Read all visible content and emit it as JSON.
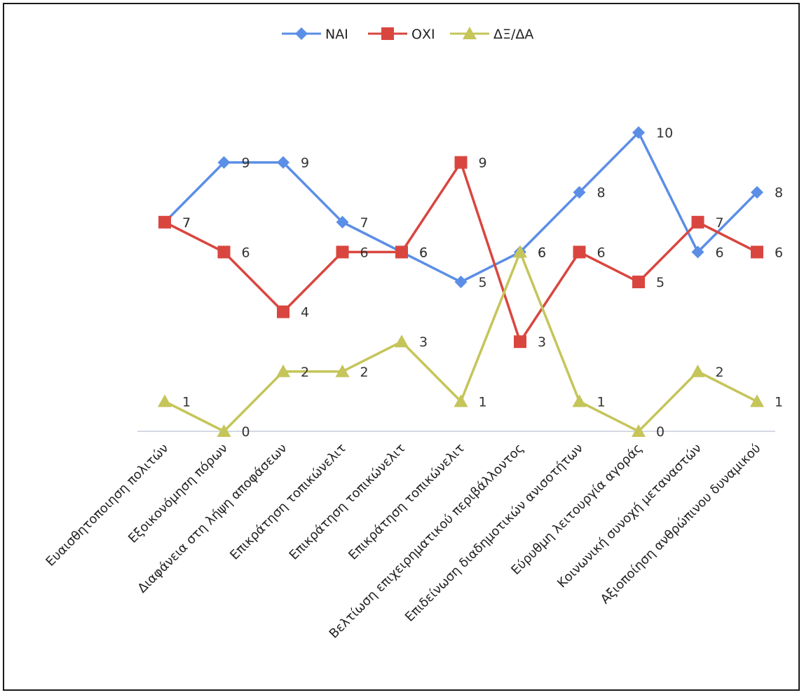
{
  "chart_data": {
    "type": "line",
    "title": "",
    "xlabel": "",
    "ylabel": "",
    "ylim": [
      0,
      10
    ],
    "grid": false,
    "legend_position": "top",
    "categories": [
      "Ευαισθητοποιηση πολιτών",
      "Εξοικονόμηση πόρων",
      "Διαφάνεια στη λήψη αποφάσεων",
      "Επικράτηση τοπικώνελιτ",
      "Επικράτηση τοπικώνελιτ",
      "Επικράτηση τοπικώνελιτ",
      "Βελτίωση επιχειρηματικού περιβάλλοντος",
      "Επιδείνωση διαδημοτικών ανισοτήτων",
      "Εύρυθμη λειτουργία αγοράς",
      "Κοινωνική συνοχή μεταναστών",
      "Αξιοποίηση ανθρώπινου δυναμικού"
    ],
    "series": [
      {
        "name": "ΝΑΙ",
        "color": "#5b8ee6",
        "marker": "diamond",
        "values": [
          7,
          9,
          9,
          7,
          6,
          5,
          6,
          8,
          10,
          6,
          8
        ]
      },
      {
        "name": "ΟΧΙ",
        "color": "#d9463f",
        "marker": "square",
        "values": [
          7,
          6,
          4,
          6,
          6,
          9,
          3,
          6,
          5,
          7,
          6
        ]
      },
      {
        "name": "ΔΞ/ΔΑ",
        "color": "#c5c55a",
        "marker": "triangle",
        "values": [
          1,
          0,
          2,
          2,
          3,
          1,
          6,
          1,
          0,
          2,
          1
        ]
      }
    ]
  }
}
